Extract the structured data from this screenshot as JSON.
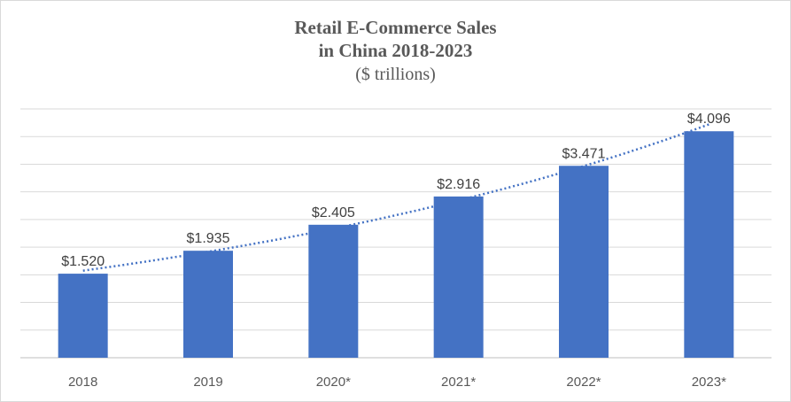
{
  "chart_data": {
    "type": "bar",
    "title": "Retail E-Commerce Sales",
    "title_line2": "in China 2018-2023",
    "subtitle": "($ trillions)",
    "categories": [
      "2018",
      "2019",
      "2020*",
      "2021*",
      "2022*",
      "2023*"
    ],
    "values": [
      1.52,
      1.935,
      2.405,
      2.916,
      3.471,
      4.096
    ],
    "data_labels": [
      "$1.520",
      "$1.935",
      "$2.405",
      "$2.916",
      "$3.471",
      "$4.096"
    ],
    "ylim": [
      0,
      4.5
    ],
    "grid_step": 0.5,
    "grid": true,
    "y_tick_labels_shown": false,
    "trendline": "exponential",
    "bar_color": "#4472C4",
    "trendline_color": "#4472C4",
    "grid_color": "#d9d9d9"
  }
}
